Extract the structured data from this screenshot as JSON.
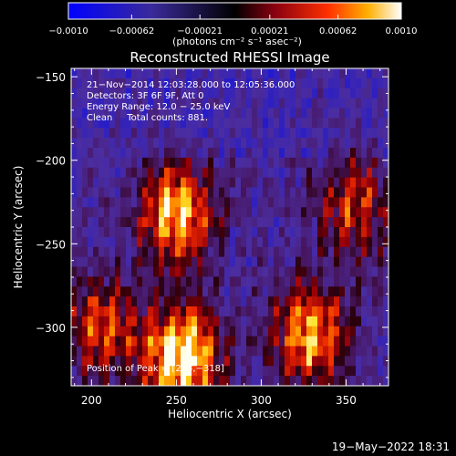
{
  "chart_data": {
    "type": "heatmap",
    "title": "Reconstructed RHESSI Image",
    "xlabel": "Heliocentric X (arcsec)",
    "ylabel": "Heliocentric Y (arcsec)",
    "xlim": [
      188,
      375
    ],
    "ylim": [
      -335,
      -145
    ],
    "x_ticks": [
      200,
      250,
      300,
      350
    ],
    "x_tick_labels": [
      "200",
      "250",
      "300",
      "350"
    ],
    "y_ticks": [
      -150,
      -200,
      -250,
      -300
    ],
    "y_tick_labels": [
      "−150",
      "−200",
      "−250",
      "−300"
    ],
    "colorbar": {
      "min": -0.001,
      "max": 0.001,
      "tick_values": [
        -0.001,
        -0.00062,
        -0.00021,
        0.00021,
        0.00062,
        0.001
      ],
      "tick_labels": [
        "−0.0010",
        "−0.00062",
        "−0.00021",
        "0.00021",
        "0.00062",
        "0.0010"
      ],
      "label": "(photons cm⁻² s⁻¹ asec⁻²)"
    },
    "annotations": {
      "time_range": "21−Nov−2014 12:03:28.000 to 12:05:36.000",
      "detectors": "Detectors: 3F 6F 9F, Att 0",
      "energy_range": "Energy Range: 12.0 − 25.0 keV",
      "method_counts": "Clean     Total counts: 881.",
      "peak": "Position of Peak = [253,−318]"
    },
    "bright_sources": [
      {
        "x": 253,
        "y": -318,
        "relative_intensity": 1.0
      },
      {
        "x": 250,
        "y": -232,
        "relative_intensity": 0.8
      },
      {
        "x": 328,
        "y": -305,
        "relative_intensity": 0.75
      },
      {
        "x": 355,
        "y": -228,
        "relative_intensity": 0.5
      },
      {
        "x": 205,
        "y": -300,
        "relative_intensity": 0.55
      }
    ]
  },
  "footer": {
    "timestamp": "19−May−2022 18:31"
  }
}
